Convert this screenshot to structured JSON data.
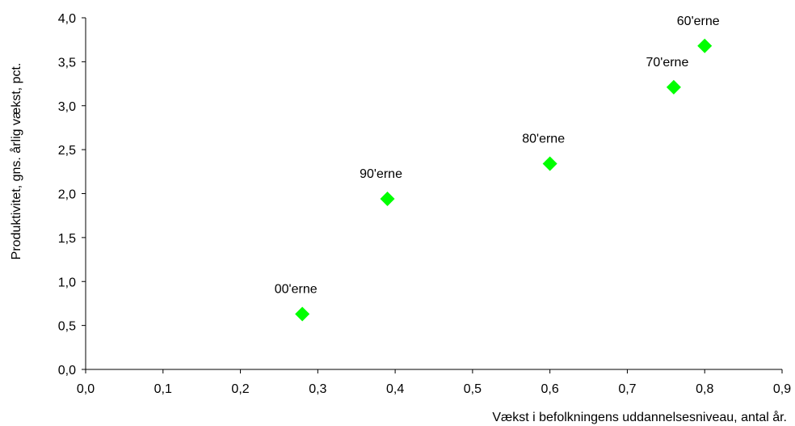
{
  "chart_data": {
    "type": "scatter",
    "title": "",
    "xlabel": "Vækst i befolkningens uddannelsesniveau, antal år.",
    "ylabel": "Produktivitet, gns. årlig vækst, pct.",
    "xlim": [
      0,
      0.9
    ],
    "ylim": [
      0,
      4.0
    ],
    "x_ticks": [
      0.0,
      0.1,
      0.2,
      0.3,
      0.4,
      0.5,
      0.6,
      0.7,
      0.8,
      0.9
    ],
    "y_ticks": [
      0.0,
      0.5,
      1.0,
      1.5,
      2.0,
      2.5,
      3.0,
      3.5,
      4.0
    ],
    "x_tick_labels": [
      "0,0",
      "0,1",
      "0,2",
      "0,3",
      "0,4",
      "0,5",
      "0,6",
      "0,7",
      "0,8",
      "0,9"
    ],
    "y_tick_labels": [
      "0,0",
      "0,5",
      "1,0",
      "1,5",
      "2,0",
      "2,5",
      "3,0",
      "3,5",
      "4,0"
    ],
    "grid": false,
    "marker": "diamond",
    "marker_color": "#00ff00",
    "points": [
      {
        "label": "60'erne",
        "x": 0.8,
        "y": 3.68
      },
      {
        "label": "70'erne",
        "x": 0.76,
        "y": 3.21
      },
      {
        "label": "80'erne",
        "x": 0.6,
        "y": 2.34
      },
      {
        "label": "90'erne",
        "x": 0.39,
        "y": 1.94
      },
      {
        "label": "00'erne",
        "x": 0.28,
        "y": 0.63
      }
    ]
  }
}
